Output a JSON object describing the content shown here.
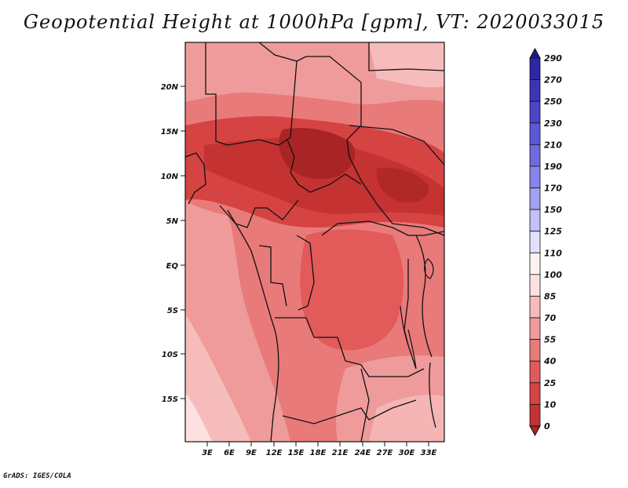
{
  "title": "Geopotential Height at 1000hPa [gpm], VT: 2020033015",
  "credit": "GrADS: IGES/COLA",
  "map": {
    "lon_labels": [
      "3E",
      "6E",
      "9E",
      "12E",
      "15E",
      "18E",
      "21E",
      "24E",
      "27E",
      "30E",
      "33E"
    ],
    "lat_labels": [
      "20N",
      "15N",
      "10N",
      "5N",
      "EQ",
      "5S",
      "10S",
      "15S"
    ]
  },
  "colorbar": {
    "labels": [
      "290",
      "270",
      "250",
      "230",
      "210",
      "190",
      "170",
      "150",
      "125",
      "110",
      "100",
      "85",
      "70",
      "55",
      "40",
      "25",
      "10",
      "0"
    ],
    "colors": [
      "#1f1a8c",
      "#2c27a4",
      "#3a35b8",
      "#4a46c8",
      "#5b58d6",
      "#6e6ae0",
      "#8783ea",
      "#a3a0f0",
      "#c3c1f6",
      "#e2e1fb",
      "#fdf3f3",
      "#fde1e1",
      "#f6bcbc",
      "#ef9b9b",
      "#e97a7a",
      "#e25a5a",
      "#d64343",
      "#c43232",
      "#a92424"
    ]
  }
}
